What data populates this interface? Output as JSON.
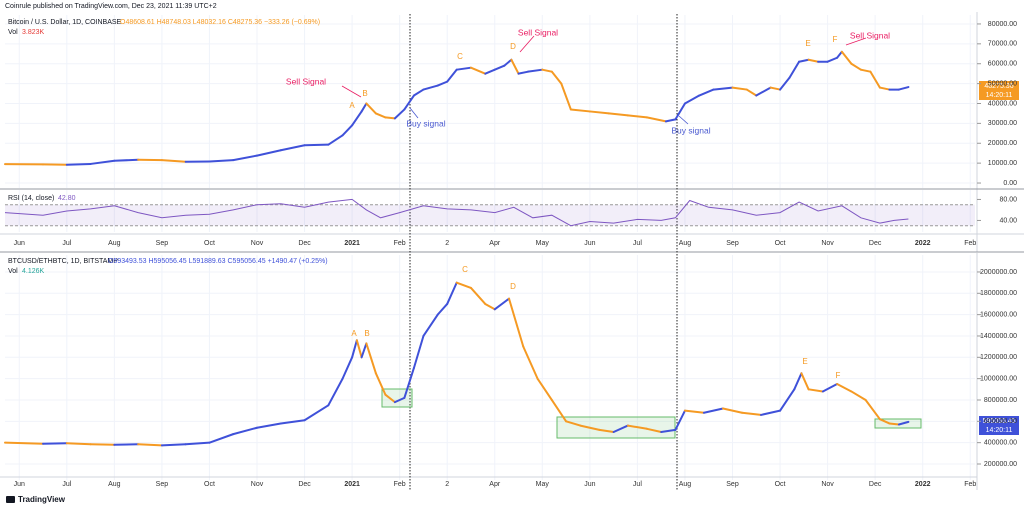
{
  "header": "Coinrule published on TradingView.com, Dec 23, 2021 11:39 UTC+2",
  "footer": "TradingView",
  "chart_data": [
    {
      "type": "line",
      "title": "Bitcoin / U.S. Dollar, 1D, COINBASE",
      "ohlc": "O48608.61 H48748.03 L48032.16 C48275.36 −333.26 (−0.69%)",
      "volume_label": "Vol",
      "volume": "3.823K",
      "last_price": 48275.36,
      "countdown": "14:20:11",
      "annotations": [
        "Sell Signal",
        "A",
        "B",
        "Buy signal",
        "C",
        "D",
        "Sell Signal",
        "Buy signal",
        "E",
        "F",
        "Sell Signal"
      ],
      "grid": true,
      "up_color": "#3f51d9",
      "down_color": "#f59a23",
      "xlim": [
        -0.3,
        20.1
      ],
      "ylim": [
        -2500,
        84500
      ],
      "xticks": [
        {
          "value": 0,
          "label": "Jun"
        },
        {
          "value": 1,
          "label": "Jul"
        },
        {
          "value": 2,
          "label": "Aug"
        },
        {
          "value": 3,
          "label": "Sep"
        },
        {
          "value": 4,
          "label": "Oct"
        },
        {
          "value": 5,
          "label": "Nov"
        },
        {
          "value": 6,
          "label": "Dec"
        },
        {
          "value": 7,
          "label": "2021"
        },
        {
          "value": 8,
          "label": "Feb"
        },
        {
          "value": 9,
          "label": "2"
        },
        {
          "value": 10,
          "label": "Apr"
        },
        {
          "value": 11,
          "label": "May"
        },
        {
          "value": 12,
          "label": "Jun"
        },
        {
          "value": 13,
          "label": "Jul"
        },
        {
          "value": 14,
          "label": "Aug"
        },
        {
          "value": 15,
          "label": "Sep"
        },
        {
          "value": 16,
          "label": "Oct"
        },
        {
          "value": 17,
          "label": "Nov"
        },
        {
          "value": 18,
          "label": "Dec"
        },
        {
          "value": 19,
          "label": "2022"
        },
        {
          "value": 20,
          "label": "Feb"
        }
      ],
      "yticks": [
        {
          "value": 0,
          "label": "0.00"
        },
        {
          "value": 10000,
          "label": "10000.00"
        },
        {
          "value": 20000,
          "label": "20000.00"
        },
        {
          "value": 30000,
          "label": "30000.00"
        },
        {
          "value": 40000,
          "label": "40000.00"
        },
        {
          "value": 50000,
          "label": "50000.00"
        },
        {
          "value": 60000,
          "label": "60000.00"
        },
        {
          "value": 70000,
          "label": "70000.00"
        },
        {
          "value": 80000,
          "label": "80000.00"
        }
      ],
      "x": [
        -0.3,
        0.5,
        1,
        1.5,
        2,
        2.5,
        3,
        3.5,
        4,
        4.5,
        5,
        5.5,
        6,
        6.5,
        6.8,
        7,
        7.2,
        7.3,
        7.5,
        7.7,
        7.9,
        8.1,
        8.3,
        8.5,
        8.8,
        9,
        9.2,
        9.5,
        9.8,
        10,
        10.2,
        10.35,
        10.5,
        10.7,
        11,
        11.2,
        11.4,
        11.6,
        12,
        12.4,
        12.8,
        13.2,
        13.6,
        13.8,
        14,
        14.3,
        14.6,
        15,
        15.3,
        15.5,
        15.8,
        16,
        16.2,
        16.4,
        16.6,
        16.8,
        17,
        17.2,
        17.3,
        17.5,
        17.7,
        17.9,
        18.1,
        18.3,
        18.5,
        18.7
      ],
      "series": [
        {
          "name": "BTCUSD",
          "values": [
            9500,
            9400,
            9200,
            9600,
            11200,
            11700,
            11500,
            10700,
            10800,
            11500,
            13800,
            16500,
            19000,
            19300,
            24000,
            29000,
            36000,
            40000,
            35000,
            33000,
            32500,
            37000,
            44000,
            47000,
            49000,
            51000,
            57000,
            58000,
            55000,
            57000,
            59000,
            62000,
            55000,
            56000,
            57000,
            56000,
            50000,
            37000,
            36000,
            35000,
            34000,
            33000,
            31000,
            32000,
            40000,
            44000,
            47000,
            48000,
            47000,
            44000,
            48000,
            47000,
            53000,
            61000,
            62000,
            61000,
            61000,
            63000,
            66000,
            60000,
            57000,
            56000,
            48000,
            47000,
            47000,
            48275.36
          ]
        }
      ]
    },
    {
      "type": "line",
      "title": "RSI (14, close)",
      "last_value": "42.80",
      "color": "#7e57c2",
      "band": [
        30,
        70
      ],
      "band_color": "#7e57c2",
      "xlim": [
        -0.3,
        20.1
      ],
      "ylim": [
        18,
        98
      ],
      "yticks": [
        {
          "value": 80,
          "label": "80.00"
        },
        {
          "value": 40,
          "label": "40.00"
        }
      ],
      "x": [
        -0.3,
        0.5,
        1,
        1.5,
        2,
        2.5,
        3,
        3.5,
        4,
        4.5,
        5,
        5.5,
        6,
        6.5,
        7,
        7.3,
        7.6,
        8,
        8.5,
        9,
        9.5,
        10,
        10.4,
        10.8,
        11.2,
        11.6,
        12,
        12.5,
        13,
        13.5,
        13.8,
        14.1,
        14.5,
        15,
        15.5,
        16,
        16.4,
        16.8,
        17.3,
        17.7,
        18.1,
        18.4,
        18.7
      ],
      "series": [
        {
          "name": "RSI",
          "values": [
            55,
            50,
            58,
            62,
            68,
            55,
            45,
            50,
            52,
            60,
            70,
            72,
            65,
            75,
            80,
            60,
            45,
            55,
            68,
            62,
            60,
            55,
            65,
            45,
            50,
            30,
            38,
            35,
            42,
            40,
            45,
            78,
            65,
            60,
            50,
            55,
            75,
            58,
            68,
            45,
            35,
            40,
            42.8
          ]
        }
      ]
    },
    {
      "type": "line",
      "title": "BTCUSD/ETHBTC, 1D, BITSTAMP",
      "ohlc": "O593493.53 H595056.45 L591889.63 C595056.45 +1490.47 (+0.25%)",
      "volume_label": "Vol",
      "volume": "4.126K",
      "last_price": 595056.45,
      "countdown": "14:20:11",
      "annotations": [
        "A",
        "B",
        "C",
        "D",
        "E",
        "F"
      ],
      "grid": true,
      "up_color": "#3f51d9",
      "down_color": "#f59a23",
      "xlim": [
        -0.3,
        20.1
      ],
      "ylim": [
        50000,
        2159000
      ],
      "xticks": [
        {
          "value": 0,
          "label": "Jun"
        },
        {
          "value": 1,
          "label": "Jul"
        },
        {
          "value": 2,
          "label": "Aug"
        },
        {
          "value": 3,
          "label": "Sep"
        },
        {
          "value": 4,
          "label": "Oct"
        },
        {
          "value": 5,
          "label": "Nov"
        },
        {
          "value": 6,
          "label": "Dec"
        },
        {
          "value": 7,
          "label": "2021"
        },
        {
          "value": 8,
          "label": "Feb"
        },
        {
          "value": 9,
          "label": "2"
        },
        {
          "value": 10,
          "label": "Apr"
        },
        {
          "value": 11,
          "label": "May"
        },
        {
          "value": 12,
          "label": "Jun"
        },
        {
          "value": 13,
          "label": "Jul"
        },
        {
          "value": 14,
          "label": "Aug"
        },
        {
          "value": 15,
          "label": "Sep"
        },
        {
          "value": 16,
          "label": "Oct"
        },
        {
          "value": 17,
          "label": "Nov"
        },
        {
          "value": 18,
          "label": "Dec"
        },
        {
          "value": 19,
          "label": "2022"
        },
        {
          "value": 20,
          "label": "Feb"
        }
      ],
      "yticks": [
        {
          "value": 200000,
          "label": "200000.00"
        },
        {
          "value": 400000,
          "label": "400000.00"
        },
        {
          "value": 600000,
          "label": "600000.00"
        },
        {
          "value": 800000,
          "label": "800000.00"
        },
        {
          "value": 1000000,
          "label": "1000000.00"
        },
        {
          "value": 1200000,
          "label": "1200000.00"
        },
        {
          "value": 1400000,
          "label": "1400000.00"
        },
        {
          "value": 1600000,
          "label": "1600000.00"
        },
        {
          "value": 1800000,
          "label": "1800000.00"
        },
        {
          "value": 2000000,
          "label": "2000000.00"
        }
      ],
      "x": [
        -0.3,
        0.5,
        1,
        1.5,
        2,
        2.5,
        3,
        3.5,
        4,
        4.5,
        5,
        5.5,
        6,
        6.5,
        6.8,
        7,
        7.1,
        7.2,
        7.3,
        7.5,
        7.7,
        7.9,
        8.1,
        8.3,
        8.5,
        8.8,
        9,
        9.2,
        9.5,
        9.8,
        10,
        10.3,
        10.6,
        10.9,
        11.2,
        11.5,
        11.8,
        12.2,
        12.5,
        12.8,
        13.2,
        13.5,
        13.8,
        14,
        14.4,
        14.8,
        15.2,
        15.6,
        16,
        16.3,
        16.45,
        16.6,
        16.9,
        17.2,
        17.5,
        17.8,
        18.1,
        18.3,
        18.5,
        18.7
      ],
      "series": [
        {
          "name": "BTCUSD/ETHBTC",
          "values": [
            400000,
            390000,
            395000,
            385000,
            380000,
            385000,
            375000,
            385000,
            400000,
            480000,
            540000,
            580000,
            610000,
            750000,
            1000000,
            1200000,
            1360000,
            1200000,
            1330000,
            1050000,
            850000,
            780000,
            820000,
            1100000,
            1400000,
            1600000,
            1700000,
            1900000,
            1850000,
            1700000,
            1650000,
            1750000,
            1300000,
            1000000,
            800000,
            600000,
            560000,
            520000,
            500000,
            560000,
            530000,
            500000,
            520000,
            700000,
            680000,
            720000,
            680000,
            660000,
            700000,
            900000,
            1050000,
            900000,
            880000,
            950000,
            880000,
            800000,
            620000,
            580000,
            570000,
            595056.45
          ]
        }
      ]
    }
  ]
}
